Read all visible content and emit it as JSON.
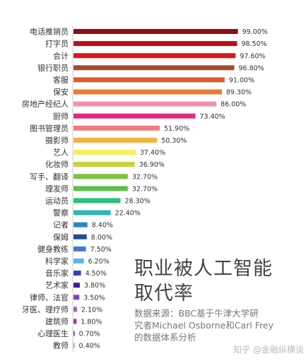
{
  "chart_data": {
    "type": "bar",
    "orientation": "horizontal",
    "categories": [
      "电话推销员",
      "打字员",
      "会计",
      "银行职员",
      "客服",
      "保安",
      "房地产经纪人",
      "厨师",
      "图书管理员",
      "摄影师",
      "艺人",
      "化妆师",
      "写手、翻译",
      "理发师",
      "运动员",
      "警察",
      "记者",
      "保姆",
      "健身教练",
      "科学家",
      "音乐家",
      "艺术家",
      "律师、法官",
      "牙医、理疗师",
      "建筑师",
      "心理医生",
      "教师"
    ],
    "values": [
      99.0,
      98.5,
      97.6,
      96.8,
      91.0,
      89.3,
      86.0,
      73.4,
      51.9,
      50.3,
      37.4,
      36.9,
      32.7,
      32.7,
      28.3,
      22.4,
      8.4,
      8.0,
      7.5,
      6.2,
      4.5,
      3.8,
      3.5,
      2.1,
      1.8,
      0.7,
      0.4
    ],
    "value_labels": [
      "99.00%",
      "98.50%",
      "97.60%",
      "96.80%",
      "91.00%",
      "89.30%",
      "86.00%",
      "73.40%",
      "51.90%",
      "50.30%",
      "37.40%",
      "36.90%",
      "32.70%",
      "32.70%",
      "28.30%",
      "22.40%",
      "8.40%",
      "8.00%",
      "7.50%",
      "6.20%",
      "4.50%",
      "3.80%",
      "3.50%",
      "2.10%",
      "1.80%",
      "0.70%",
      "0.40%"
    ],
    "colors": [
      "#8b0d14",
      "#b5121b",
      "#d7191c",
      "#a94a2e",
      "#e05a2b",
      "#ec7a36",
      "#f08fb6",
      "#e0297f",
      "#f17a7e",
      "#f3b33d",
      "#f7ef5a",
      "#c8d13a",
      "#7ec242",
      "#5fbf4a",
      "#2fbf7a",
      "#2fb8b0",
      "#2b86c9",
      "#1f4f8f",
      "#4a78c8",
      "#56b7e8",
      "#3c3fae",
      "#3a1d9e",
      "#8a3fbf",
      "#a05fd0",
      "#9a2fa0",
      "#7a2a8a",
      "#9a8ad0"
    ],
    "xlim": [
      0,
      100
    ],
    "grid": false
  },
  "title_lines": [
    "职业被人工智能",
    "取代率"
  ],
  "source_lines": [
    "数据来源：BBC基于牛津大学研",
    "究者Michael Osborne和Carl Frey",
    "的数据体系分析"
  ],
  "watermark": "知乎 @金融纵横谈"
}
